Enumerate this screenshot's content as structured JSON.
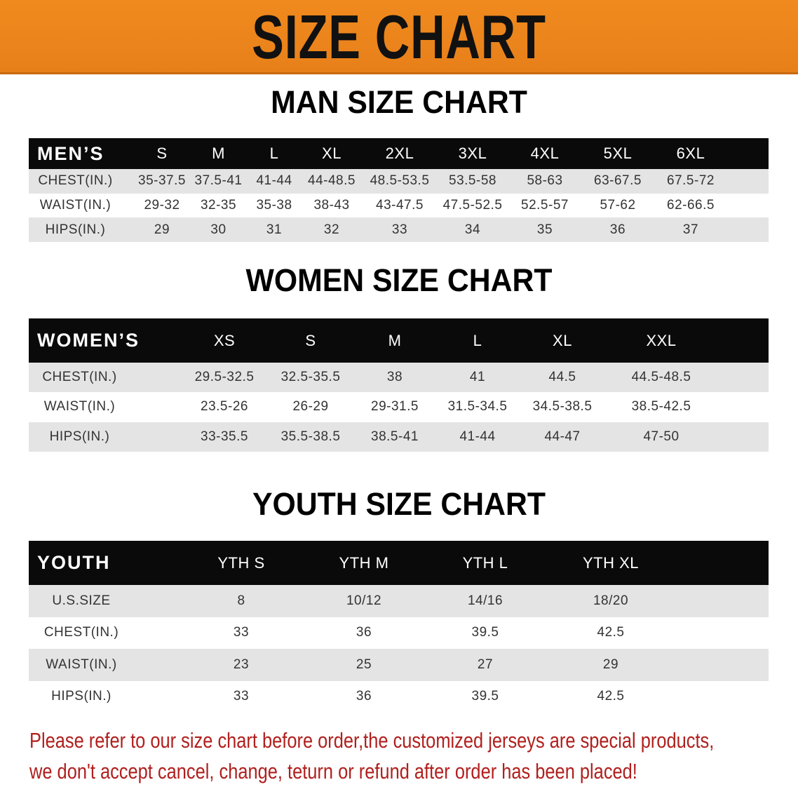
{
  "banner": {
    "title": "SIZE CHART",
    "color": "#ec831c"
  },
  "men": {
    "title": "MAN SIZE CHART",
    "header": [
      "MEN’S",
      "S",
      "M",
      "L",
      "XL",
      "2XL",
      "3XL",
      "4XL",
      "5XL",
      "6XL"
    ],
    "rows": [
      [
        "CHEST(IN.)",
        "35-37.5",
        "37.5-41",
        "41-44",
        "44-48.5",
        "48.5-53.5",
        "53.5-58",
        "58-63",
        "63-67.5",
        "67.5-72"
      ],
      [
        "WAIST(IN.)",
        "29-32",
        "32-35",
        "35-38",
        "38-43",
        "43-47.5",
        "47.5-52.5",
        "52.5-57",
        "57-62",
        "62-66.5"
      ],
      [
        "HIPS(IN.)",
        "29",
        "30",
        "31",
        "32",
        "33",
        "34",
        "35",
        "36",
        "37"
      ]
    ]
  },
  "women": {
    "title": "WOMEN SIZE CHART",
    "header": [
      "WOMEN’S",
      "XS",
      "S",
      "M",
      "L",
      "XL",
      "XXL"
    ],
    "rows": [
      [
        "CHEST(IN.)",
        "29.5-32.5",
        "32.5-35.5",
        "38",
        "41",
        "44.5",
        "44.5-48.5"
      ],
      [
        "WAIST(IN.)",
        "23.5-26",
        "26-29",
        "29-31.5",
        "31.5-34.5",
        "34.5-38.5",
        "38.5-42.5"
      ],
      [
        "HIPS(IN.)",
        "33-35.5",
        "35.5-38.5",
        "38.5-41",
        "41-44",
        "44-47",
        "47-50"
      ]
    ]
  },
  "youth": {
    "title": "YOUTH SIZE CHART",
    "header": [
      "YOUTH",
      "YTH S",
      "YTH M",
      "YTH L",
      "YTH XL"
    ],
    "rows": [
      [
        "U.S.SIZE",
        "8",
        "10/12",
        "14/16",
        "18/20"
      ],
      [
        "CHEST(IN.)",
        "33",
        "36",
        "39.5",
        "42.5"
      ],
      [
        "WAIST(IN.)",
        "23",
        "25",
        "27",
        "29"
      ],
      [
        "HIPS(IN.)",
        "33",
        "36",
        "39.5",
        "42.5"
      ]
    ]
  },
  "notice": {
    "line1": "Please refer to our size chart before order,the customized jerseys are special products,",
    "line2": "we don't accept cancel, change, teturn or refund after order has been placed!",
    "color": "#b0201e"
  }
}
